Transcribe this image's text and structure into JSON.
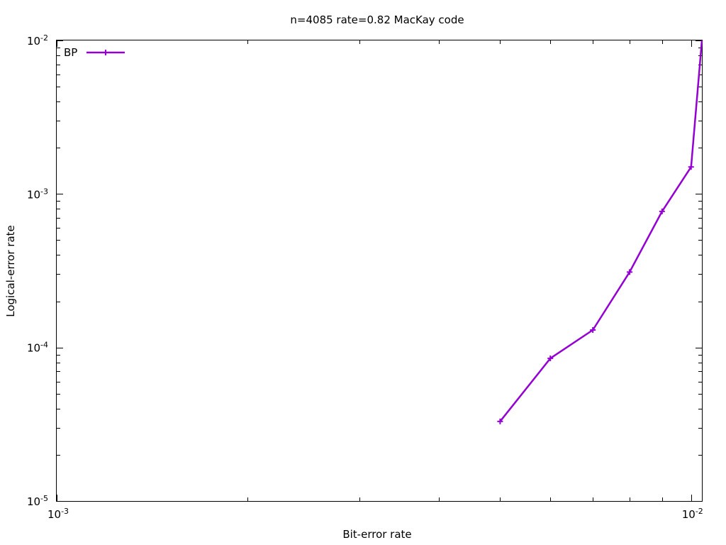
{
  "chart_data": {
    "type": "line",
    "title": "n=4085 rate=0.82 MacKay code",
    "xlabel": "Bit-error rate",
    "ylabel": "Logical-error rate",
    "x_scale": "log",
    "y_scale": "log",
    "xlim": [
      0.001,
      0.0104
    ],
    "ylim": [
      1e-05,
      0.01
    ],
    "grid": false,
    "legend_position": "top-left",
    "x_ticks": [
      {
        "value": 0.001,
        "base": "10",
        "exp": "-3"
      },
      {
        "value": 0.01,
        "base": "10",
        "exp": "-2"
      }
    ],
    "y_ticks": [
      {
        "value": 1e-05,
        "base": "10",
        "exp": "-5"
      },
      {
        "value": 0.0001,
        "base": "10",
        "exp": "-4"
      },
      {
        "value": 0.001,
        "base": "10",
        "exp": "-3"
      },
      {
        "value": 0.01,
        "base": "10",
        "exp": "-2"
      }
    ],
    "series": [
      {
        "name": "BP",
        "color": "#9400d3",
        "marker": "plus",
        "x": [
          0.005,
          0.006,
          0.007,
          0.008,
          0.009,
          0.01,
          0.0104
        ],
        "y": [
          3.3e-05,
          8.5e-05,
          0.00013,
          0.00031,
          0.00077,
          0.0015,
          0.01
        ]
      }
    ]
  }
}
